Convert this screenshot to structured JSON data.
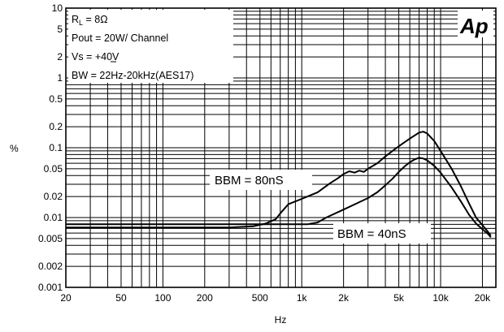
{
  "chart_data": {
    "type": "line",
    "title": "",
    "xlabel": "Hz",
    "ylabel": "%",
    "x_scale": "log",
    "y_scale": "log",
    "xlim": [
      20,
      25000
    ],
    "ylim": [
      0.001,
      10
    ],
    "grid": true,
    "x_ticks": [
      {
        "value": 20,
        "label": "20"
      },
      {
        "value": 50,
        "label": "50"
      },
      {
        "value": 100,
        "label": "100"
      },
      {
        "value": 200,
        "label": "200"
      },
      {
        "value": 500,
        "label": "500"
      },
      {
        "value": 1000,
        "label": "1k"
      },
      {
        "value": 2000,
        "label": "2k"
      },
      {
        "value": 5000,
        "label": "5k"
      },
      {
        "value": 10000,
        "label": "10k"
      },
      {
        "value": 20000,
        "label": "20k"
      }
    ],
    "y_ticks": [
      {
        "value": 10,
        "label": "10"
      },
      {
        "value": 5,
        "label": "5"
      },
      {
        "value": 2,
        "label": "2"
      },
      {
        "value": 1,
        "label": "1"
      },
      {
        "value": 0.5,
        "label": "0.5"
      },
      {
        "value": 0.2,
        "label": "0.2"
      },
      {
        "value": 0.1,
        "label": "0.1"
      },
      {
        "value": 0.05,
        "label": "0.05"
      },
      {
        "value": 0.02,
        "label": "0.02"
      },
      {
        "value": 0.01,
        "label": "0.01"
      },
      {
        "value": 0.005,
        "label": "0.005"
      },
      {
        "value": 0.002,
        "label": "0.002"
      },
      {
        "value": 0.001,
        "label": "0.001"
      }
    ],
    "annotations": {
      "rl_label": "R",
      "rl_sub": "L",
      "rl_value": " = 8Ω",
      "pout": "Pout = 20W/ Channel",
      "vs": "Vs = +40V",
      "bw": "BW = 22Hz-20kHz(AES17)"
    },
    "logo_text": "Ap",
    "series": [
      {
        "name": "BBM = 80nS",
        "x": [
          20,
          50,
          100,
          200,
          300,
          450,
          550,
          650,
          700,
          800,
          1000,
          1300,
          1600,
          1800,
          2000,
          2200,
          2400,
          2600,
          2800,
          3000,
          3500,
          4000,
          4500,
          5000,
          5500,
          6000,
          6500,
          7000,
          7500,
          8000,
          9000,
          10000,
          12000,
          14000,
          16000,
          18000,
          20000,
          22000,
          23000
        ],
        "values": [
          0.0072,
          0.0072,
          0.0072,
          0.0072,
          0.0072,
          0.0075,
          0.0082,
          0.0095,
          0.0115,
          0.0155,
          0.0185,
          0.023,
          0.031,
          0.036,
          0.042,
          0.046,
          0.044,
          0.047,
          0.045,
          0.05,
          0.06,
          0.075,
          0.09,
          0.105,
          0.12,
          0.135,
          0.15,
          0.165,
          0.17,
          0.16,
          0.125,
          0.09,
          0.05,
          0.028,
          0.016,
          0.01,
          0.0078,
          0.0062,
          0.0055
        ]
      },
      {
        "name": "BBM = 40nS",
        "x": [
          20,
          50,
          100,
          200,
          300,
          500,
          700,
          900,
          1100,
          1300,
          1500,
          2000,
          2500,
          3000,
          3500,
          4000,
          4500,
          5000,
          5500,
          6000,
          6500,
          7000,
          7500,
          8000,
          9000,
          10000,
          12000,
          14000,
          16000,
          18000,
          20000,
          22000,
          23000
        ],
        "values": [
          0.008,
          0.008,
          0.008,
          0.008,
          0.008,
          0.008,
          0.008,
          0.008,
          0.008,
          0.0085,
          0.01,
          0.013,
          0.016,
          0.019,
          0.023,
          0.029,
          0.036,
          0.045,
          0.054,
          0.062,
          0.068,
          0.072,
          0.07,
          0.066,
          0.055,
          0.044,
          0.027,
          0.017,
          0.011,
          0.0082,
          0.0068,
          0.0058,
          0.0052
        ]
      }
    ],
    "series_labels": [
      "BBM = 80nS",
      "BBM = 40nS"
    ]
  }
}
